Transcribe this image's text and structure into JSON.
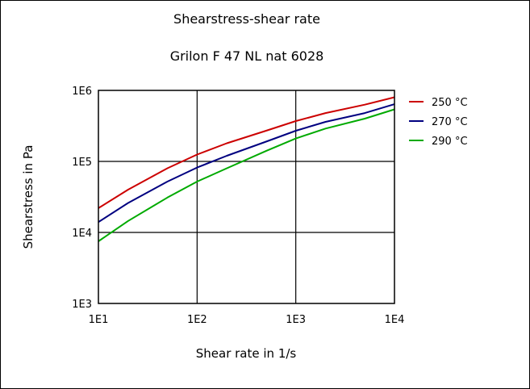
{
  "chart_data": {
    "type": "line",
    "title": "Shearstress-shear rate",
    "subtitle": "Grilon F 47 NL nat 6028",
    "xlabel": "Shear rate in 1/s",
    "ylabel": "Shearstress in Pa",
    "xscale": "log",
    "yscale": "log",
    "xlim": [
      10,
      10000
    ],
    "ylim": [
      1000,
      1000000
    ],
    "xticks": [
      "1E1",
      "1E2",
      "1E3",
      "1E4"
    ],
    "yticks": [
      "1E3",
      "1E4",
      "1E5",
      "1E6"
    ],
    "grid": true,
    "legend_position": "right",
    "series": [
      {
        "name": "250 °C",
        "color": "#cc0000",
        "x": [
          10,
          20,
          50,
          100,
          200,
          500,
          1000,
          2000,
          5000,
          10000
        ],
        "y": [
          22000,
          40000,
          80000,
          125000,
          180000,
          270000,
          370000,
          480000,
          630000,
          800000
        ]
      },
      {
        "name": "270 °C",
        "color": "#000080",
        "x": [
          10,
          20,
          50,
          100,
          200,
          500,
          1000,
          2000,
          5000,
          10000
        ],
        "y": [
          14000,
          26000,
          52000,
          82000,
          120000,
          190000,
          270000,
          360000,
          480000,
          640000
        ]
      },
      {
        "name": "290 °C",
        "color": "#00aa00",
        "x": [
          10,
          20,
          50,
          100,
          200,
          500,
          1000,
          2000,
          5000,
          10000
        ],
        "y": [
          7500,
          14500,
          31000,
          52000,
          80000,
          140000,
          210000,
          290000,
          400000,
          540000
        ]
      }
    ]
  }
}
